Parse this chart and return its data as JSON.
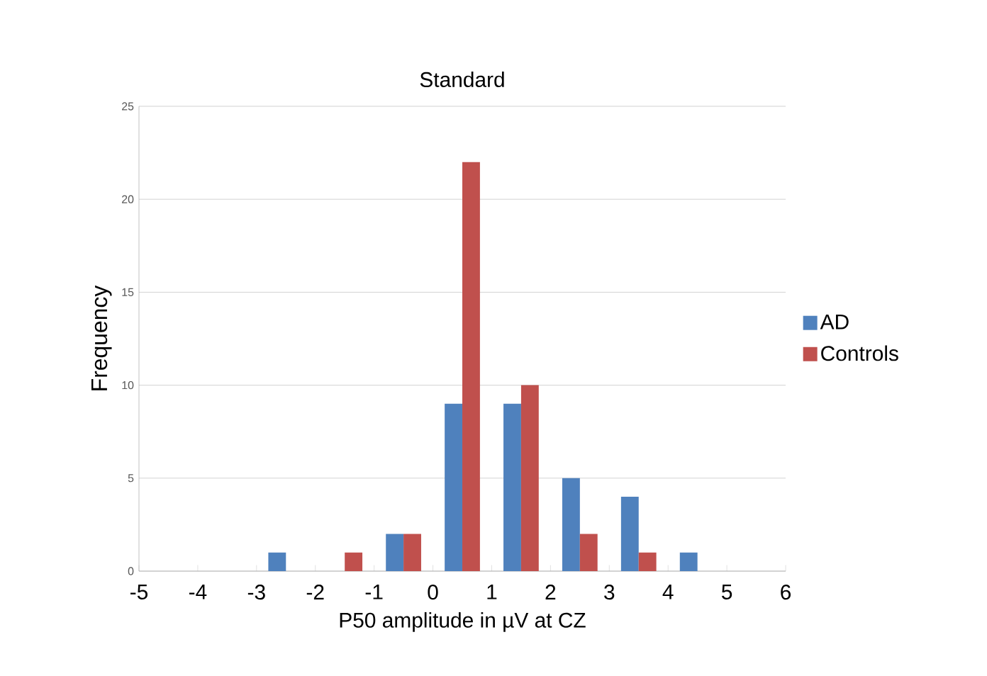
{
  "chart_data": {
    "type": "histogram",
    "title": "Standard",
    "xlabel": "P50 amplitude in µV at CZ",
    "ylabel": "Frequency",
    "bins": [
      -5,
      -4,
      -3,
      -2,
      -1,
      0,
      1,
      2,
      3,
      4,
      5,
      6
    ],
    "series": [
      {
        "name": "AD",
        "color": "#4f81bd",
        "values": [
          0,
          0,
          1,
          0,
          2,
          9,
          9,
          5,
          4,
          1,
          0
        ]
      },
      {
        "name": "Controls",
        "color": "#c0504d",
        "values": [
          0,
          0,
          0,
          1,
          2,
          22,
          10,
          2,
          1,
          0,
          0
        ]
      }
    ],
    "xlim": [
      -5,
      6
    ],
    "xticks": [
      -5,
      -4,
      -3,
      -2,
      -1,
      0,
      1,
      2,
      3,
      4,
      5,
      6
    ],
    "ylim": [
      0,
      25
    ],
    "yticks": [
      0,
      5,
      10,
      15,
      20,
      25
    ],
    "grid": "y",
    "legend": "right"
  }
}
